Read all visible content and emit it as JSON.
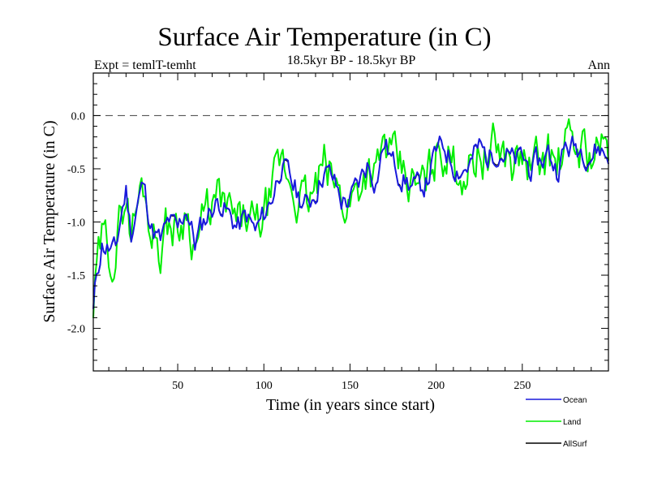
{
  "chart_data": {
    "type": "line",
    "title": "Surface Air Temperature (in C)",
    "expt": "Expt = temlT-temht",
    "subtitle": "18.5kyr BP - 18.5kyr BP",
    "season": "Ann",
    "xlabel": "Time (in years since start)",
    "ylabel": "Surface Air Temperature (in C)",
    "xlim": [
      1,
      300
    ],
    "ylim": [
      -2.4,
      0.4
    ],
    "xticks": [
      50,
      100,
      150,
      200,
      250
    ],
    "yticks": [
      0.0,
      -0.5,
      -1.0,
      -1.5,
      -2.0
    ],
    "ytick_labels": [
      "0.0",
      "-0.5",
      "-1.0",
      "-1.5",
      "-2.0"
    ],
    "reference_line": 0.0,
    "anchors": {
      "x": [
        1,
        3,
        6,
        10,
        14,
        17,
        20,
        23,
        27,
        30,
        35,
        40,
        45,
        50,
        55,
        60,
        65,
        70,
        75,
        80,
        85,
        90,
        95,
        100,
        105,
        110,
        115,
        120,
        125,
        130,
        135,
        140,
        145,
        150,
        155,
        160,
        165,
        170,
        175,
        180,
        185,
        190,
        195,
        200,
        205,
        210,
        215,
        220,
        225,
        230,
        235,
        240,
        245,
        250,
        255,
        260,
        265,
        270,
        275,
        280,
        285,
        290,
        295,
        300
      ],
      "y": [
        -1.85,
        -1.5,
        -1.2,
        -1.25,
        -1.3,
        -0.95,
        -0.7,
        -1.1,
        -0.8,
        -0.65,
        -1.05,
        -1.2,
        -1.0,
        -1.1,
        -0.85,
        -1.2,
        -1.0,
        -0.85,
        -0.8,
        -0.95,
        -1.05,
        -0.95,
        -1.1,
        -0.95,
        -0.75,
        -0.45,
        -0.6,
        -0.75,
        -0.85,
        -0.7,
        -0.5,
        -0.6,
        -0.8,
        -0.8,
        -0.65,
        -0.45,
        -0.6,
        -0.25,
        -0.45,
        -0.55,
        -0.65,
        -0.7,
        -0.6,
        -0.35,
        -0.3,
        -0.45,
        -0.5,
        -0.45,
        -0.3,
        -0.4,
        -0.3,
        -0.35,
        -0.45,
        -0.4,
        -0.5,
        -0.45,
        -0.35,
        -0.5,
        -0.3,
        -0.3,
        -0.3,
        -0.35,
        -0.3,
        -0.4
      ]
    },
    "series": [
      {
        "name": "Ocean",
        "color": "#1a1adc",
        "noise": 0.11,
        "seed": 11,
        "offset": 0.0
      },
      {
        "name": "Land",
        "color": "#00ee00",
        "noise": 0.2,
        "seed": 29,
        "offset": 0.0
      },
      {
        "name": "AllSurf",
        "color": "#000000",
        "noise": 0.1,
        "seed": 11,
        "offset": 0.0
      }
    ]
  }
}
